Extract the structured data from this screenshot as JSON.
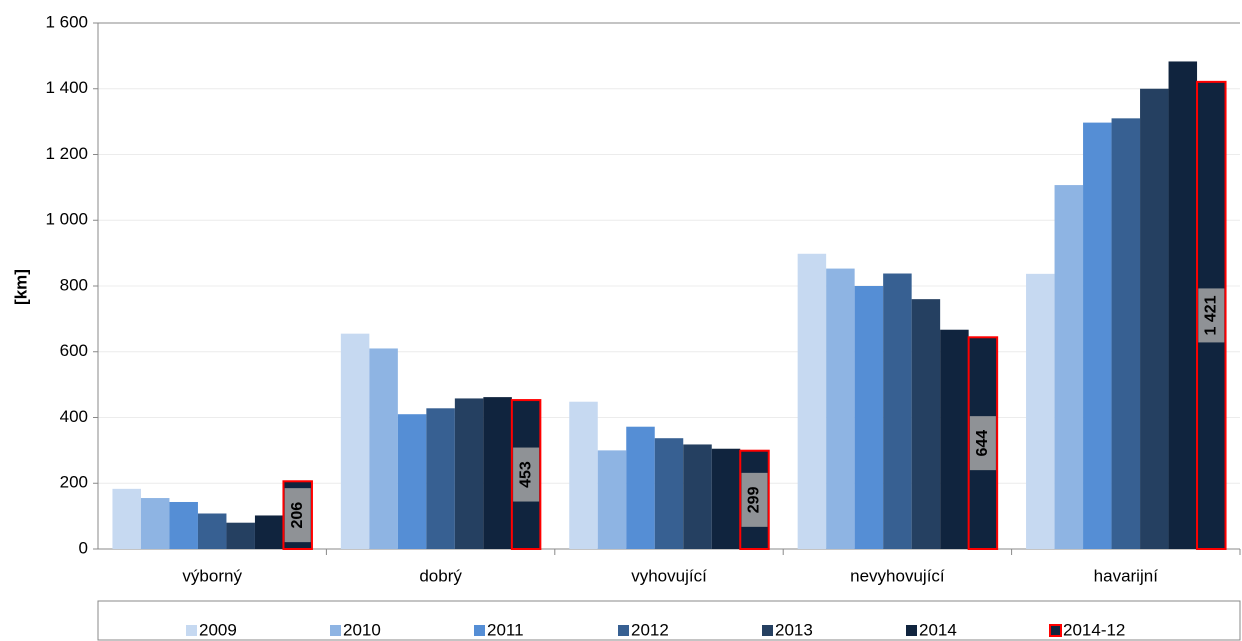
{
  "chart_data": {
    "type": "bar",
    "y_label": "[km]",
    "categories": [
      "výborný",
      "dobrý",
      "vyhovující",
      "nevyhovující",
      "havarijní"
    ],
    "series": [
      {
        "name": "2009",
        "color": "#c6d9f1",
        "values": [
          183,
          655,
          448,
          898,
          837
        ]
      },
      {
        "name": "2010",
        "color": "#8eb4e3",
        "values": [
          155,
          610,
          300,
          853,
          1107
        ]
      },
      {
        "name": "2011",
        "color": "#558ed5",
        "values": [
          143,
          410,
          372,
          800,
          1297
        ]
      },
      {
        "name": "2012",
        "color": "#376092",
        "values": [
          108,
          428,
          337,
          838,
          1310
        ]
      },
      {
        "name": "2013",
        "color": "#254061",
        "values": [
          80,
          458,
          318,
          760,
          1400
        ]
      },
      {
        "name": "2014",
        "color": "#10243e",
        "values": [
          102,
          462,
          305,
          667,
          1483
        ]
      },
      {
        "name": "2014-12",
        "color": "#10243e",
        "edgecolor": "#ff0000",
        "values": [
          206,
          453,
          299,
          644,
          1421
        ],
        "value_labels": [
          "206",
          "453",
          "299",
          "644",
          "1 421"
        ]
      }
    ],
    "ylim": [
      0,
      1600
    ],
    "yticks": [
      0,
      200,
      400,
      600,
      800,
      {
        "value": 1000,
        "label": "1 000"
      },
      {
        "value": 1200,
        "label": "1 200"
      },
      {
        "value": 1400,
        "label": "1 400"
      },
      {
        "value": 1600,
        "label": "1 600"
      }
    ],
    "grid": true,
    "legend": "bottom"
  }
}
